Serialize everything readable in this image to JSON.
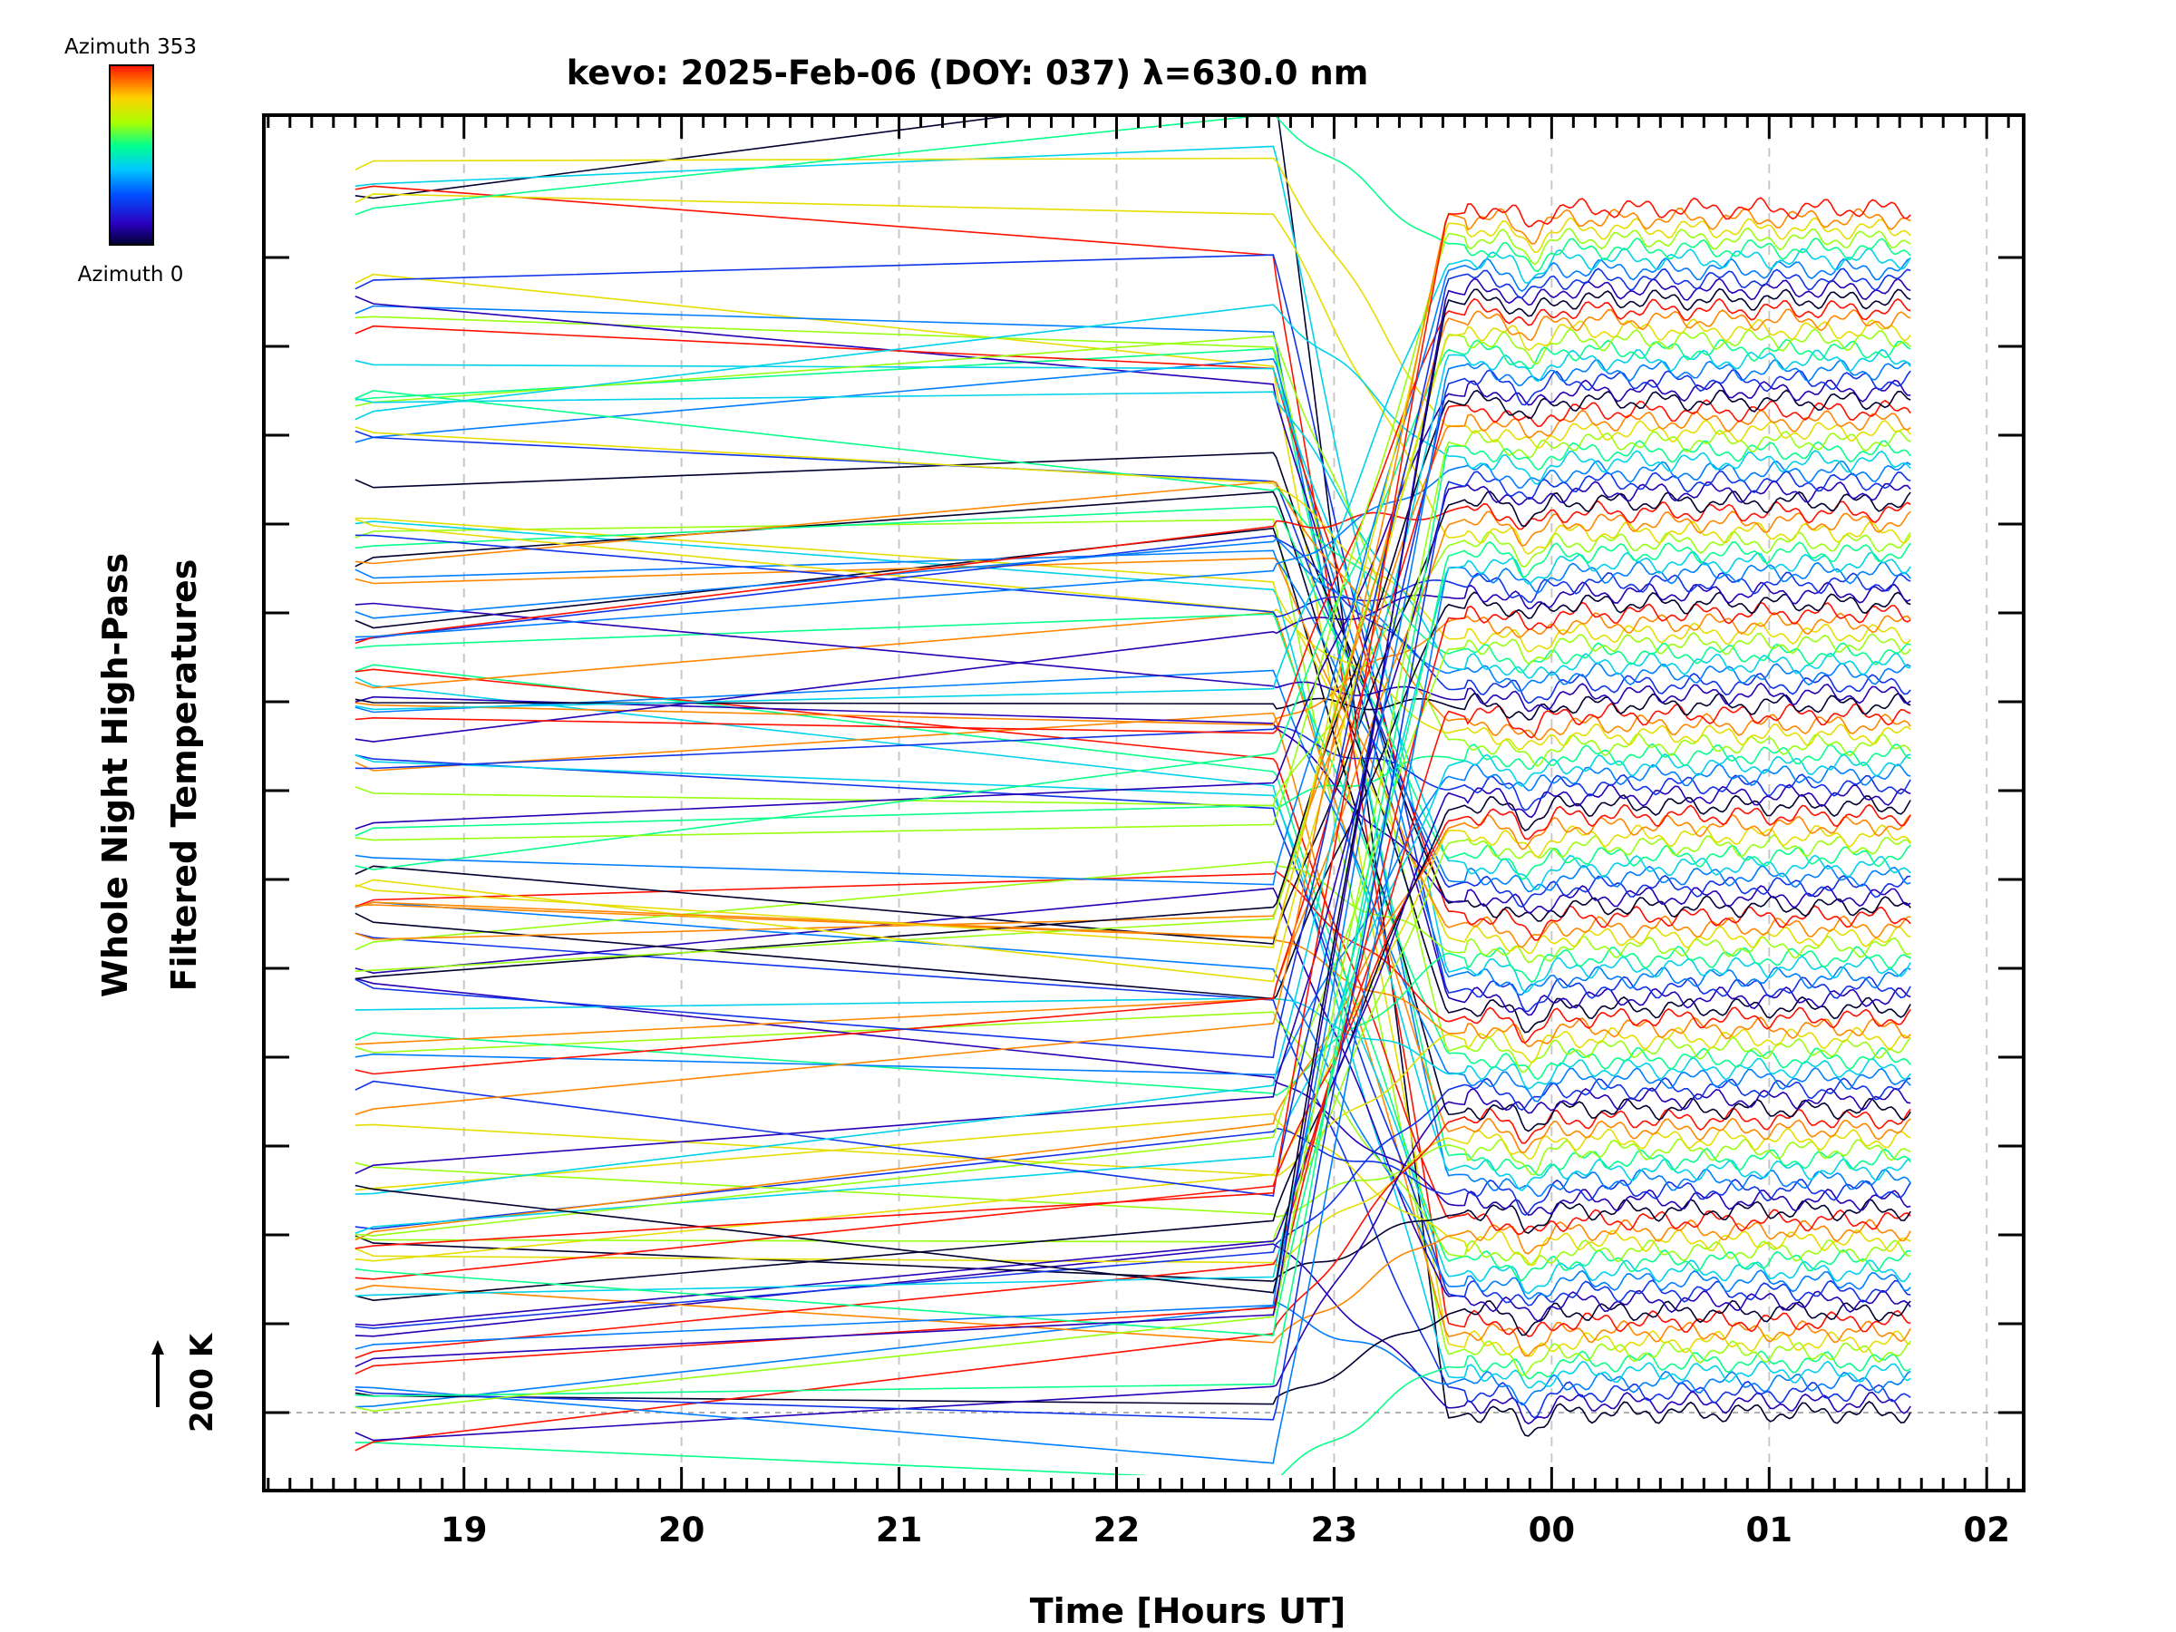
{
  "chart_data": {
    "type": "line",
    "title": "kevo: 2025-Feb-06 (DOY: 037) λ=630.0 nm",
    "xlabel": "Time [Hours UT]",
    "ylabel_lines": [
      "Whole Night High-Pass",
      "Filtered Temperatures"
    ],
    "x_tick_labels": [
      "19",
      "20",
      "21",
      "22",
      "23",
      "00",
      "01",
      "02"
    ],
    "x_tick_hours": [
      19,
      20,
      21,
      22,
      23,
      24,
      25,
      26
    ],
    "xlim": [
      18.08,
      26.17
    ],
    "data_start_hour": 18.5,
    "data_end_hour": 25.65,
    "colorbar": {
      "top_label": "Azimuth 353",
      "bottom_label": "Azimuth 0",
      "colormap": "rainbow",
      "azimuth_range": [
        0,
        353
      ]
    },
    "scale_marker": {
      "label": "200 K"
    },
    "grid": true,
    "series_count": 120
  }
}
